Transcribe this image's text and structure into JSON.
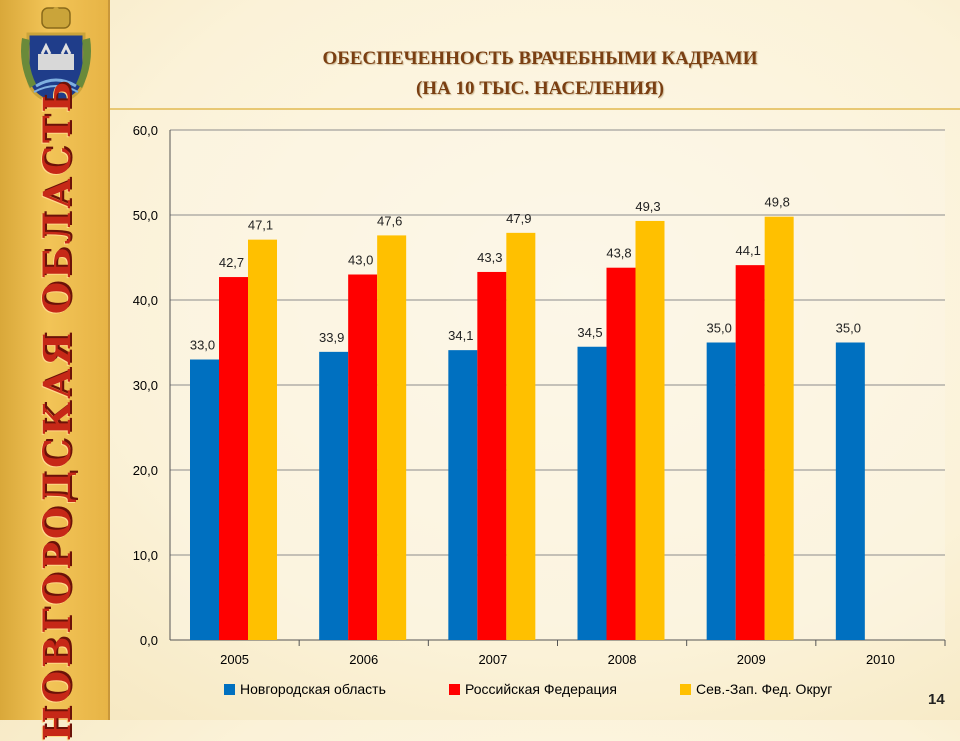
{
  "header": {
    "title_line1": "ОБЕСПЕЧЕННОСТЬ ВРАЧЕБНЫМИ КАДРАМИ",
    "title_line2": "(НА 10 ТЫС. НАСЕЛЕНИЯ)"
  },
  "sidebar": {
    "region_title": "НОВГОРОДСКАЯ ОБЛАСТЬ",
    "emblem_icon": "coat-of-arms-icon"
  },
  "page_number": "14",
  "colors": {
    "series1": "#0070c0",
    "series2": "#ff0000",
    "series3": "#ffc000",
    "sidebar": "#f2c457",
    "title": "#7a3f12"
  },
  "chart_data": {
    "type": "bar",
    "categories": [
      "2005",
      "2006",
      "2007",
      "2008",
      "2009",
      "2010"
    ],
    "series": [
      {
        "name": "Новгородская область",
        "values": [
          33.0,
          33.9,
          34.1,
          34.5,
          35.0,
          35.0
        ],
        "labels": [
          "33,0",
          "33,9",
          "34,1",
          "34,5",
          "35,0",
          "35,0"
        ]
      },
      {
        "name": "Российская Федерация",
        "values": [
          42.7,
          43.0,
          43.3,
          43.8,
          44.1,
          null
        ],
        "labels": [
          "42,7",
          "43,0",
          "43,3",
          "43,8",
          "44,1",
          null
        ]
      },
      {
        "name": "Сев.-Зап. Фед. Округ",
        "values": [
          47.1,
          47.6,
          47.9,
          49.3,
          49.8,
          null
        ],
        "labels": [
          "47,1",
          "47,6",
          "47,9",
          "49,3",
          "49,8",
          null
        ]
      }
    ],
    "yticks": [
      "0,0",
      "10,0",
      "20,0",
      "30,0",
      "40,0",
      "50,0",
      "60,0"
    ],
    "ylim": [
      0,
      60
    ],
    "grid": true,
    "legend": "bottom"
  }
}
